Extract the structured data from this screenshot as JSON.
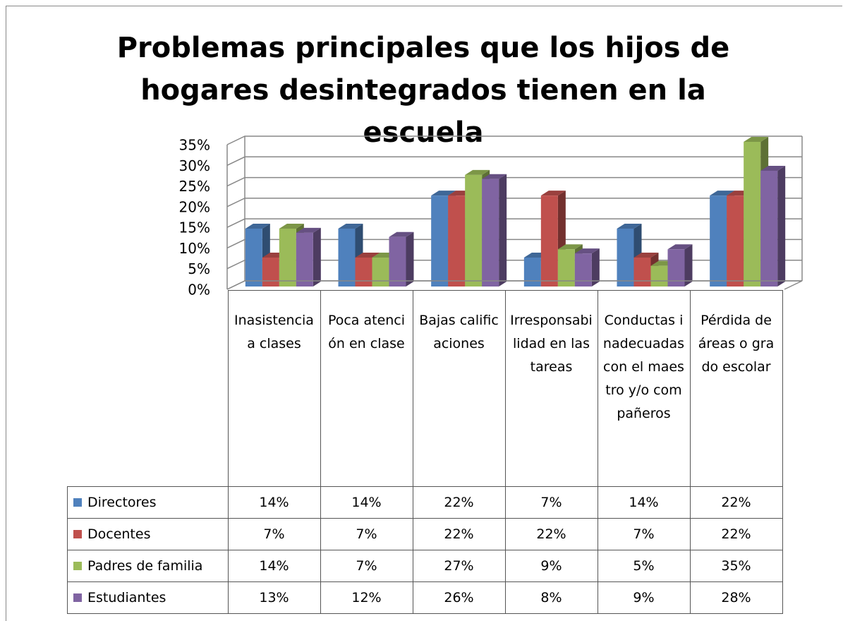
{
  "chart_data": {
    "type": "bar3d",
    "title": "Problemas principales que los hijos de hogares desintegrados tienen en la escuela",
    "categories": [
      "Inasistencia a clases",
      "Poca atención en clase",
      "Bajas calificaciones",
      "Irresponsabilidad en las tareas",
      "Conductas inadecuadas con el maestro y/o compañeros",
      "Pérdida de áreas o grado escolar"
    ],
    "series": [
      {
        "name": "Directores",
        "color": "#4f81bd",
        "values": [
          14,
          14,
          22,
          7,
          14,
          22
        ],
        "value_labels": [
          "14%",
          "14%",
          "22%",
          "7%",
          "14%",
          "22%"
        ]
      },
      {
        "name": "Docentes",
        "color": "#c0504d",
        "values": [
          7,
          7,
          22,
          22,
          7,
          22
        ],
        "value_labels": [
          "7%",
          "7%",
          "22%",
          "22%",
          "7%",
          "22%"
        ]
      },
      {
        "name": "Padres de familia",
        "color": "#9bbb59",
        "values": [
          14,
          7,
          27,
          9,
          5,
          35
        ],
        "value_labels": [
          "14%",
          "7%",
          "27%",
          "9%",
          "5%",
          "35%"
        ]
      },
      {
        "name": "Estudiantes",
        "color": "#8064a2",
        "values": [
          13,
          12,
          26,
          8,
          9,
          28
        ],
        "value_labels": [
          "13%",
          "12%",
          "26%",
          "8%",
          "9%",
          "28%"
        ]
      }
    ],
    "ylim": [
      0,
      35
    ],
    "yticks": [
      {
        "value": 0,
        "label": "0%"
      },
      {
        "value": 5,
        "label": "5%"
      },
      {
        "value": 10,
        "label": "10%"
      },
      {
        "value": 15,
        "label": "15%"
      },
      {
        "value": 20,
        "label": "20%"
      },
      {
        "value": 25,
        "label": "25%"
      },
      {
        "value": 30,
        "label": "30%"
      },
      {
        "value": 35,
        "label": "35%"
      }
    ],
    "grid": true
  }
}
